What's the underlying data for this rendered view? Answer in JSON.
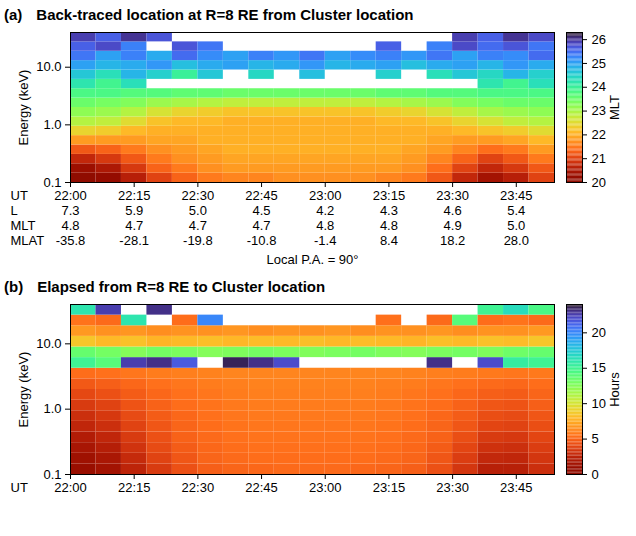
{
  "chart_data": [
    {
      "type": "heatmap",
      "panel": "(a)",
      "title": "Back-traced location at R=8 RE from Cluster location",
      "ylabel": "Energy (keV)",
      "xlabel": "UT",
      "log": "y",
      "xlim": [
        22.0,
        23.9
      ],
      "ylim": [
        0.1,
        40
      ],
      "xticks": [
        {
          "value": 22,
          "label": "22:00"
        },
        {
          "value": 22.25,
          "label": "22:15"
        },
        {
          "value": 22.5,
          "label": "22:30"
        },
        {
          "value": 22.75,
          "label": "22:45"
        },
        {
          "value": 23,
          "label": "23:00"
        },
        {
          "value": 23.25,
          "label": "23:15"
        },
        {
          "value": 23.5,
          "label": "23:30"
        },
        {
          "value": 23.75,
          "label": "23:45"
        }
      ],
      "yticks": [
        0.1,
        {
          "value": 1,
          "label": "1.0"
        },
        {
          "value": 10,
          "label": "10.0"
        }
      ],
      "annotation_rows": [
        {
          "name": "L",
          "values": [
            "7.3",
            "5.9",
            "5.0",
            "4.5",
            "4.2",
            "4.3",
            "4.6",
            "5.4"
          ]
        },
        {
          "name": "MLT",
          "values": [
            "4.8",
            "4.7",
            "4.7",
            "4.7",
            "4.8",
            "4.8",
            "4.9",
            "5.0"
          ]
        },
        {
          "name": "MLAT",
          "values": [
            "-35.8",
            "-28.1",
            "-19.8",
            "-10.8",
            "-1.4",
            "8.4",
            "18.2",
            "28.0"
          ]
        }
      ],
      "footnote": "Local P.A. = 90°",
      "colorbar": {
        "label": "MLT",
        "range": [
          20,
          26.3
        ],
        "ticks": [
          20,
          21,
          22,
          23,
          24,
          25,
          26
        ]
      },
      "x_edges": [
        22.0,
        22.1,
        22.2,
        22.3,
        22.4,
        22.5,
        22.6,
        22.7,
        22.8,
        22.9,
        23.0,
        23.1,
        23.2,
        23.3,
        23.4,
        23.5,
        23.6,
        23.7,
        23.8,
        23.9
      ],
      "energy_edges": [
        0.1,
        0.145,
        0.211,
        0.307,
        0.447,
        0.65,
        0.945,
        1.37,
        2.0,
        2.91,
        4.23,
        6.15,
        8.94,
        13.0,
        18.9,
        27.5,
        40
      ],
      "cells": [
        [
          20.0,
          20.2,
          20.6,
          21.0,
          21.3,
          21.5,
          21.6,
          21.6,
          21.7,
          21.7,
          21.7,
          21.7,
          21.6,
          21.5,
          21.2,
          20.7,
          20.4,
          20.6,
          21.0
        ],
        [
          20.3,
          20.5,
          20.9,
          21.3,
          21.5,
          21.7,
          21.8,
          21.8,
          21.8,
          21.8,
          21.8,
          21.8,
          21.8,
          21.7,
          21.4,
          21.0,
          20.7,
          20.9,
          21.2
        ],
        [
          20.7,
          20.9,
          21.2,
          21.5,
          21.7,
          21.8,
          21.9,
          21.9,
          21.9,
          21.9,
          21.9,
          21.9,
          21.9,
          21.8,
          21.6,
          21.3,
          21.0,
          21.2,
          21.5
        ],
        [
          21.2,
          21.3,
          21.5,
          21.7,
          21.8,
          21.9,
          22.0,
          22.0,
          22.0,
          22.0,
          22.0,
          22.0,
          22.0,
          21.9,
          21.8,
          21.6,
          21.4,
          21.5,
          21.8
        ],
        [
          21.8,
          21.8,
          21.8,
          21.9,
          21.9,
          22.0,
          22.0,
          22.0,
          22.0,
          22.0,
          22.0,
          22.0,
          22.0,
          22.0,
          21.9,
          21.8,
          21.8,
          21.9,
          22.1
        ],
        [
          22.4,
          22.3,
          22.1,
          22.0,
          22.0,
          22.0,
          22.0,
          22.0,
          22.0,
          22.0,
          22.0,
          22.0,
          22.0,
          22.0,
          22.0,
          22.1,
          22.2,
          22.3,
          22.5
        ],
        [
          22.9,
          22.8,
          22.5,
          22.2,
          22.1,
          22.1,
          22.0,
          22.0,
          22.0,
          22.0,
          22.0,
          22.0,
          22.1,
          22.1,
          22.2,
          22.4,
          22.6,
          22.8,
          22.9
        ],
        [
          23.2,
          23.1,
          22.9,
          22.6,
          22.4,
          22.3,
          22.2,
          22.2,
          22.2,
          22.2,
          22.2,
          22.2,
          22.3,
          22.4,
          22.6,
          22.8,
          23.0,
          23.1,
          23.2
        ],
        [
          23.5,
          23.4,
          23.3,
          23.1,
          23.0,
          22.9,
          22.8,
          22.8,
          22.8,
          22.8,
          22.8,
          22.8,
          22.9,
          23.0,
          23.1,
          23.3,
          23.4,
          23.5,
          23.5
        ],
        [
          23.8,
          23.8,
          23.7,
          23.7,
          23.6,
          23.6,
          23.5,
          23.5,
          23.5,
          23.5,
          23.5,
          23.5,
          23.6,
          23.6,
          23.7,
          23.7,
          23.8,
          23.8,
          23.8
        ],
        [
          24.2,
          23.9,
          24.3,
          null,
          null,
          null,
          null,
          null,
          null,
          null,
          null,
          null,
          null,
          null,
          null,
          null,
          24.2,
          23.9,
          24.3
        ],
        [
          24.6,
          24.3,
          24.8,
          24.5,
          24.0,
          24.6,
          null,
          24.4,
          null,
          24.7,
          null,
          null,
          24.5,
          null,
          24.3,
          24.6,
          24.4,
          24.8,
          24.5
        ],
        [
          25.0,
          24.8,
          24.9,
          25.1,
          24.7,
          24.9,
          25.0,
          24.8,
          24.9,
          25.1,
          24.8,
          24.9,
          25.0,
          24.7,
          24.9,
          25.0,
          24.8,
          25.1,
          24.9
        ],
        [
          25.4,
          25.0,
          25.3,
          24.9,
          25.5,
          25.2,
          25.0,
          25.3,
          25.1,
          25.4,
          25.0,
          25.2,
          25.3,
          25.1,
          25.4,
          25.0,
          25.3,
          25.2,
          25.5
        ],
        [
          25.6,
          25.8,
          25.3,
          null,
          25.7,
          25.4,
          null,
          null,
          null,
          null,
          null,
          null,
          25.6,
          null,
          25.3,
          25.8,
          25.5,
          25.7,
          25.4
        ],
        [
          25.9,
          25.6,
          26.0,
          25.7,
          null,
          null,
          null,
          null,
          null,
          null,
          null,
          null,
          null,
          null,
          null,
          25.9,
          25.6,
          26.0,
          25.8
        ]
      ]
    },
    {
      "type": "heatmap",
      "panel": "(b)",
      "title": "Elapsed from R=8 RE to Cluster location",
      "ylabel": "Energy (keV)",
      "xlabel": "UT",
      "log": "y",
      "xlim": [
        22.0,
        23.9
      ],
      "ylim": [
        0.1,
        40
      ],
      "xticks": [
        {
          "value": 22,
          "label": "22:00"
        },
        {
          "value": 22.25,
          "label": "22:15"
        },
        {
          "value": 22.5,
          "label": "22:30"
        },
        {
          "value": 22.75,
          "label": "22:45"
        },
        {
          "value": 23,
          "label": "23:00"
        },
        {
          "value": 23.25,
          "label": "23:15"
        },
        {
          "value": 23.5,
          "label": "23:30"
        },
        {
          "value": 23.75,
          "label": "23:45"
        }
      ],
      "yticks": [
        0.1,
        {
          "value": 1,
          "label": "1.0"
        },
        {
          "value": 10,
          "label": "10.0"
        }
      ],
      "colorbar": {
        "label": "Hours",
        "range": [
          0,
          24
        ],
        "ticks": [
          0,
          5,
          10,
          15,
          20
        ]
      },
      "x_edges": [
        22.0,
        22.1,
        22.2,
        22.3,
        22.4,
        22.5,
        22.6,
        22.7,
        22.8,
        22.9,
        23.0,
        23.1,
        23.2,
        23.3,
        23.4,
        23.5,
        23.6,
        23.7,
        23.8,
        23.9
      ],
      "energy_edges": [
        0.1,
        0.145,
        0.211,
        0.307,
        0.447,
        0.65,
        0.945,
        1.37,
        2.0,
        2.91,
        4.23,
        6.15,
        8.94,
        13.0,
        18.9,
        27.5,
        40
      ],
      "cells": [
        [
          1.0,
          1.5,
          2.5,
          3.5,
          4.3,
          4.8,
          5.0,
          5.1,
          5.2,
          5.2,
          5.2,
          5.1,
          5.0,
          4.8,
          4.3,
          3.3,
          2.3,
          2.3,
          3.0
        ],
        [
          1.3,
          1.8,
          2.8,
          3.8,
          4.5,
          5.0,
          5.2,
          5.3,
          5.3,
          5.3,
          5.3,
          5.3,
          5.2,
          5.0,
          4.5,
          3.6,
          2.7,
          2.6,
          3.3
        ],
        [
          1.7,
          2.2,
          3.2,
          4.1,
          4.7,
          5.1,
          5.3,
          5.4,
          5.4,
          5.4,
          5.4,
          5.4,
          5.3,
          5.1,
          4.7,
          3.9,
          3.1,
          3.0,
          3.6
        ],
        [
          2.1,
          2.6,
          3.5,
          4.3,
          4.9,
          5.2,
          5.4,
          5.5,
          5.5,
          5.5,
          5.5,
          5.5,
          5.4,
          5.2,
          4.9,
          4.2,
          3.5,
          3.4,
          3.9
        ],
        [
          2.6,
          3.0,
          3.8,
          4.5,
          5.0,
          5.3,
          5.5,
          5.6,
          5.6,
          5.6,
          5.6,
          5.6,
          5.5,
          5.3,
          5.0,
          4.5,
          3.9,
          3.8,
          4.2
        ],
        [
          3.0,
          3.4,
          4.1,
          4.7,
          5.1,
          5.4,
          5.6,
          5.7,
          5.7,
          5.7,
          5.7,
          5.7,
          5.6,
          5.4,
          5.1,
          4.7,
          4.2,
          4.1,
          4.5
        ],
        [
          3.5,
          3.8,
          4.4,
          4.9,
          5.3,
          5.5,
          5.7,
          5.8,
          5.8,
          5.8,
          5.8,
          5.8,
          5.7,
          5.5,
          5.3,
          4.9,
          4.5,
          4.4,
          4.8
        ],
        [
          4.0,
          4.3,
          4.7,
          5.1,
          5.4,
          5.6,
          5.8,
          5.9,
          5.9,
          5.9,
          5.9,
          5.9,
          5.8,
          5.6,
          5.4,
          5.1,
          4.8,
          4.7,
          5.0
        ],
        [
          4.6,
          4.8,
          5.1,
          5.4,
          5.6,
          5.8,
          5.9,
          6.0,
          6.0,
          6.0,
          6.0,
          6.0,
          5.9,
          5.8,
          5.6,
          5.4,
          5.2,
          5.1,
          5.3
        ],
        [
          5.3,
          5.4,
          5.6,
          5.8,
          5.9,
          6.0,
          6.1,
          6.1,
          6.1,
          6.1,
          6.1,
          6.1,
          6.1,
          6.0,
          5.9,
          5.8,
          5.7,
          5.6,
          5.7
        ],
        [
          15.0,
          14.0,
          22.5,
          23.0,
          21.5,
          null,
          23.5,
          23.0,
          22.0,
          null,
          null,
          null,
          null,
          null,
          23.0,
          null,
          22.0,
          15.5,
          15.0
        ],
        [
          13.5,
          13.0,
          12.5,
          13.0,
          12.8,
          12.5,
          12.7,
          13.0,
          12.8,
          12.6,
          12.8,
          13.0,
          12.7,
          12.5,
          12.8,
          13.0,
          12.7,
          13.2,
          13.5
        ],
        [
          8.5,
          8.0,
          8.3,
          7.8,
          8.0,
          8.2,
          7.9,
          8.1,
          8.0,
          8.2,
          7.9,
          8.1,
          8.0,
          7.8,
          8.2,
          8.0,
          8.3,
          8.1,
          8.5
        ],
        [
          6.8,
          6.5,
          6.7,
          6.4,
          6.6,
          6.5,
          6.7,
          6.4,
          6.6,
          6.5,
          6.7,
          6.4,
          6.6,
          6.5,
          6.7,
          6.4,
          6.6,
          6.5,
          6.8
        ],
        [
          5.5,
          5.2,
          16.0,
          null,
          5.3,
          20.0,
          null,
          null,
          null,
          null,
          null,
          null,
          5.4,
          null,
          5.2,
          14.0,
          5.3,
          5.5,
          5.2
        ],
        [
          16.0,
          22.5,
          null,
          23.0,
          null,
          null,
          null,
          null,
          null,
          null,
          null,
          null,
          null,
          null,
          null,
          null,
          15.0,
          16.5,
          14.5
        ]
      ]
    }
  ]
}
